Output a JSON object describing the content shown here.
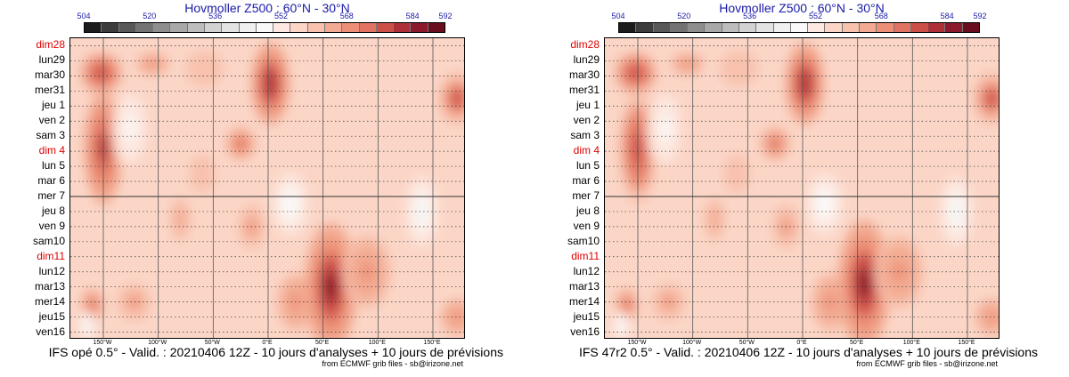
{
  "chart_data": [
    {
      "type": "heatmap",
      "title": "Hovmoller Z500 : 60°N - 30°N",
      "colorbar": {
        "tick_labels": [
          "504",
          "520",
          "536",
          "552",
          "568",
          "584",
          "592"
        ],
        "tick_values": [
          504,
          520,
          536,
          552,
          568,
          584,
          592
        ],
        "range": [
          504,
          592
        ],
        "colors": [
          "#1c1c1c",
          "#3c3c3c",
          "#585858",
          "#737373",
          "#8e8e8e",
          "#a8a8a8",
          "#bdbdbd",
          "#d2d2d2",
          "#e3e3e3",
          "#f0f0f0",
          "#f9f9f9",
          "#fde9e1",
          "#fbd6c7",
          "#f8c2ae",
          "#f3aa92",
          "#ec8f76",
          "#e07361",
          "#cc5048",
          "#ad3038",
          "#8b1a2c",
          "#680e1e"
        ]
      },
      "y_tick_labels": [
        "dim28",
        "lun29",
        "mar30",
        "mer31",
        "jeu 1",
        "ven 2",
        "sam 3",
        "dim 4",
        "lun 5",
        "mar 6",
        "mer 7",
        "jeu 8",
        "ven 9",
        "sam10",
        "dim11",
        "lun12",
        "mar13",
        "mer14",
        "jeu15",
        "ven16"
      ],
      "y_tick_red": [
        true,
        false,
        false,
        false,
        false,
        false,
        false,
        true,
        false,
        false,
        false,
        false,
        false,
        false,
        true,
        false,
        false,
        false,
        false,
        false
      ],
      "x_tick_labels": [
        "150°W",
        "100°W",
        "50°W",
        "0°E",
        "50°E",
        "100°E",
        "150°E"
      ],
      "x_tick_values": [
        -150,
        -100,
        -50,
        0,
        50,
        100,
        150
      ],
      "xlim": [
        -180,
        180
      ],
      "analysis_forecast_split": "mer 7",
      "caption": "IFS opé 0.5° - Valid. : 20210406 12Z - 10 jours d'analyses + 10 jours de prévisions",
      "source": "from ECMWF grib files - sb@irizone.net",
      "anomalies": [
        {
          "lon": -152,
          "day": 1.8,
          "width": 26,
          "height": 3.0,
          "value": 578
        },
        {
          "lon": -150,
          "day": 6.8,
          "width": 22,
          "height": 7.5,
          "value": 580
        },
        {
          "lon": -105,
          "day": 1.2,
          "width": 20,
          "height": 1.6,
          "value": 570
        },
        {
          "lon": -58,
          "day": 1.5,
          "width": 30,
          "height": 3.2,
          "value": 562
        },
        {
          "lon": -60,
          "day": 8.5,
          "width": 20,
          "height": 3.5,
          "value": 562
        },
        {
          "lon": -80,
          "day": 11.5,
          "width": 12,
          "height": 3.0,
          "value": 566
        },
        {
          "lon": -25,
          "day": 6.5,
          "width": 18,
          "height": 2.4,
          "value": 572
        },
        {
          "lon": 2,
          "day": 2.5,
          "width": 22,
          "height": 5.5,
          "value": 582
        },
        {
          "lon": -15,
          "day": 12.0,
          "width": 16,
          "height": 3.0,
          "value": 568
        },
        {
          "lon": 25,
          "day": 17.0,
          "width": 22,
          "height": 4.0,
          "value": 570
        },
        {
          "lon": 57,
          "day": 16.0,
          "width": 30,
          "height": 8.5,
          "value": 584
        },
        {
          "lon": 90,
          "day": 15.0,
          "width": 28,
          "height": 5.0,
          "value": 570
        },
        {
          "lon": 172,
          "day": 3.5,
          "width": 22,
          "height": 3.5,
          "value": 576
        },
        {
          "lon": 172,
          "day": 18.0,
          "width": 20,
          "height": 2.6,
          "value": 570
        },
        {
          "lon": -160,
          "day": 17.2,
          "width": 14,
          "height": 2.4,
          "value": 572
        },
        {
          "lon": -122,
          "day": 17.0,
          "width": 20,
          "height": 2.5,
          "value": 568
        }
      ],
      "troughs": [
        {
          "lon": -125,
          "day": 5.5,
          "width": 22,
          "height": 6.0,
          "value": 548
        },
        {
          "lon": 20,
          "day": 10.5,
          "width": 20,
          "height": 4.0,
          "value": 546
        },
        {
          "lon": 140,
          "day": 11.0,
          "width": 18,
          "height": 4.5,
          "value": 544
        },
        {
          "lon": -165,
          "day": 18.6,
          "width": 10,
          "height": 2.0,
          "value": 544
        }
      ]
    },
    {
      "type": "heatmap",
      "title": "Hovmoller Z500 : 60°N - 30°N",
      "colorbar": {
        "tick_labels": [
          "504",
          "520",
          "536",
          "552",
          "568",
          "584",
          "592"
        ],
        "tick_values": [
          504,
          520,
          536,
          552,
          568,
          584,
          592
        ],
        "range": [
          504,
          592
        ],
        "colors": [
          "#1c1c1c",
          "#3c3c3c",
          "#585858",
          "#737373",
          "#8e8e8e",
          "#a8a8a8",
          "#bdbdbd",
          "#d2d2d2",
          "#e3e3e3",
          "#f0f0f0",
          "#f9f9f9",
          "#fde9e1",
          "#fbd6c7",
          "#f8c2ae",
          "#f3aa92",
          "#ec8f76",
          "#e07361",
          "#cc5048",
          "#ad3038",
          "#8b1a2c",
          "#680e1e"
        ]
      },
      "y_tick_labels": [
        "dim28",
        "lun29",
        "mar30",
        "mer31",
        "jeu 1",
        "ven 2",
        "sam 3",
        "dim 4",
        "lun 5",
        "mar 6",
        "mer 7",
        "jeu 8",
        "ven 9",
        "sam10",
        "dim11",
        "lun12",
        "mar13",
        "mer14",
        "jeu15",
        "ven16"
      ],
      "y_tick_red": [
        true,
        false,
        false,
        false,
        false,
        false,
        false,
        true,
        false,
        false,
        false,
        false,
        false,
        false,
        true,
        false,
        false,
        false,
        false,
        false
      ],
      "x_tick_labels": [
        "150°W",
        "100°W",
        "50°W",
        "0°E",
        "50°E",
        "100°E",
        "150°E"
      ],
      "x_tick_values": [
        -150,
        -100,
        -50,
        0,
        50,
        100,
        150
      ],
      "xlim": [
        -180,
        180
      ],
      "analysis_forecast_split": "mer 7",
      "caption": "IFS 47r2 0.5° - Valid. : 20210406 12Z - 10 jours d'analyses + 10 jours de prévisions",
      "source": "from ECMWF grib files - sb@irizone.net",
      "anomalies": [
        {
          "lon": -152,
          "day": 1.8,
          "width": 26,
          "height": 3.0,
          "value": 578
        },
        {
          "lon": -150,
          "day": 6.8,
          "width": 22,
          "height": 7.5,
          "value": 578
        },
        {
          "lon": -105,
          "day": 1.2,
          "width": 20,
          "height": 1.6,
          "value": 570
        },
        {
          "lon": -58,
          "day": 1.5,
          "width": 30,
          "height": 3.2,
          "value": 562
        },
        {
          "lon": -60,
          "day": 8.5,
          "width": 20,
          "height": 3.5,
          "value": 562
        },
        {
          "lon": -80,
          "day": 11.5,
          "width": 12,
          "height": 3.0,
          "value": 566
        },
        {
          "lon": -25,
          "day": 6.5,
          "width": 18,
          "height": 2.4,
          "value": 572
        },
        {
          "lon": 2,
          "day": 2.5,
          "width": 22,
          "height": 5.5,
          "value": 582
        },
        {
          "lon": -15,
          "day": 12.0,
          "width": 16,
          "height": 3.0,
          "value": 568
        },
        {
          "lon": 25,
          "day": 17.0,
          "width": 22,
          "height": 4.0,
          "value": 570
        },
        {
          "lon": 56,
          "day": 15.8,
          "width": 30,
          "height": 8.5,
          "value": 584
        },
        {
          "lon": 88,
          "day": 15.0,
          "width": 28,
          "height": 5.0,
          "value": 570
        },
        {
          "lon": 172,
          "day": 3.5,
          "width": 22,
          "height": 3.5,
          "value": 576
        },
        {
          "lon": 172,
          "day": 18.0,
          "width": 20,
          "height": 2.6,
          "value": 570
        },
        {
          "lon": -160,
          "day": 17.2,
          "width": 14,
          "height": 2.4,
          "value": 572
        },
        {
          "lon": -122,
          "day": 17.0,
          "width": 20,
          "height": 2.5,
          "value": 568
        }
      ],
      "troughs": [
        {
          "lon": -125,
          "day": 5.5,
          "width": 22,
          "height": 6.0,
          "value": 548
        },
        {
          "lon": 20,
          "day": 10.5,
          "width": 20,
          "height": 4.0,
          "value": 546
        },
        {
          "lon": 140,
          "day": 11.0,
          "width": 18,
          "height": 4.5,
          "value": 544
        },
        {
          "lon": -165,
          "day": 18.6,
          "width": 10,
          "height": 2.0,
          "value": 544
        }
      ]
    }
  ]
}
